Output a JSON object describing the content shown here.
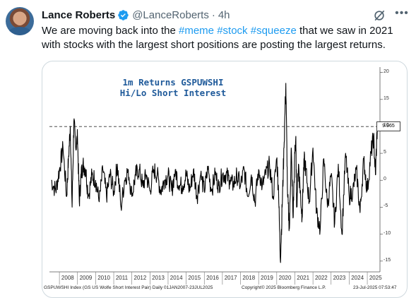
{
  "author": {
    "name": "Lance Roberts",
    "handle": "@LanceRoberts",
    "separator": "·",
    "time": "4h"
  },
  "tweet": {
    "line1_prefix": "We are moving back into the ",
    "tags": [
      "#meme",
      "#stock",
      "#squeeze"
    ],
    "line1_suffix": " that we saw in 2021",
    "line2": "with stocks with the largest short positions are posting the largest returns."
  },
  "icons": {
    "verified": "verified-badge-icon",
    "grok": "grok-icon",
    "more": "more-options-icon"
  },
  "chart_data": {
    "type": "line",
    "title": "1m Returns GSPUWSHI",
    "subtitle": "Hi/Lo Short Interest",
    "x_tick_labels": [
      "2008",
      "2009",
      "2010",
      "2011",
      "2012",
      "2013",
      "2014",
      "2015",
      "2016",
      "2017",
      "2018",
      "2019",
      "2020",
      "2021",
      "2022",
      "2023",
      "2024",
      "2025"
    ],
    "y_tick_labels": [
      "20",
      "15",
      "10",
      "5",
      "0",
      "-5",
      "-10",
      "-15"
    ],
    "ylim": [
      -17,
      21
    ],
    "last_value_label": "9.965",
    "reference_line": 9.965,
    "x": [
      2007.55,
      2007.8,
      2008.0,
      2008.2,
      2008.4,
      2008.5,
      2008.6,
      2008.7,
      2008.8,
      2008.9,
      2009.0,
      2009.1,
      2009.2,
      2009.3,
      2009.45,
      2009.6,
      2009.8,
      2010.0,
      2010.2,
      2010.4,
      2010.6,
      2010.8,
      2011.0,
      2011.2,
      2011.4,
      2011.6,
      2011.8,
      2012.0,
      2012.2,
      2012.4,
      2012.6,
      2012.8,
      2013.0,
      2013.2,
      2013.4,
      2013.6,
      2013.8,
      2014.0,
      2014.2,
      2014.4,
      2014.6,
      2014.8,
      2015.0,
      2015.2,
      2015.4,
      2015.6,
      2015.8,
      2016.0,
      2016.2,
      2016.4,
      2016.6,
      2016.8,
      2017.0,
      2017.2,
      2017.4,
      2017.6,
      2017.8,
      2018.0,
      2018.2,
      2018.4,
      2018.6,
      2018.8,
      2019.0,
      2019.2,
      2019.4,
      2019.6,
      2019.8,
      2020.0,
      2020.1,
      2020.2,
      2020.3,
      2020.4,
      2020.5,
      2020.6,
      2020.7,
      2020.8,
      2020.9,
      2021.0,
      2021.05,
      2021.1,
      2021.2,
      2021.3,
      2021.4,
      2021.5,
      2021.6,
      2021.8,
      2022.0,
      2022.2,
      2022.4,
      2022.6,
      2022.8,
      2023.0,
      2023.2,
      2023.4,
      2023.6,
      2023.8,
      2024.0,
      2024.2,
      2024.4,
      2024.6,
      2024.8,
      2025.0,
      2025.2,
      2025.35,
      2025.45,
      2025.55
    ],
    "values": [
      0,
      -2,
      2,
      6,
      -3,
      4,
      10,
      -5,
      11,
      6,
      8,
      -4,
      1,
      3,
      2,
      -3,
      1,
      0,
      -4,
      2,
      -3,
      1,
      -2,
      3,
      -5,
      0,
      2,
      -3,
      1,
      2,
      -1,
      1,
      -2,
      2,
      1,
      -2,
      0,
      1,
      -2,
      2,
      -1,
      -1,
      1,
      -2,
      2,
      -3,
      1,
      -2,
      2,
      -2,
      1,
      -1,
      1,
      1,
      0,
      -1,
      1,
      -1,
      2,
      -3,
      1,
      -4,
      2,
      -1,
      1,
      3,
      -3,
      4,
      -2,
      -15,
      -5,
      6,
      18,
      -3,
      -9,
      6,
      -7,
      5,
      8,
      -5,
      3,
      -2,
      -7,
      4,
      2,
      -4,
      6,
      -6,
      -9,
      4,
      -5,
      1,
      -8,
      3,
      -10,
      5,
      -3,
      -2,
      2,
      -6,
      4,
      -2,
      5,
      8,
      1,
      9.965
    ]
  },
  "footer": {
    "left": "GSPUWSHI Index (GS US Wolfe Short Interest Pair)  Daily 01JAN2007-23JUL2025",
    "middle": "Copyright© 2025 Bloomberg Finance L.P.",
    "right": "23-Jul-2025 07:53:47"
  }
}
